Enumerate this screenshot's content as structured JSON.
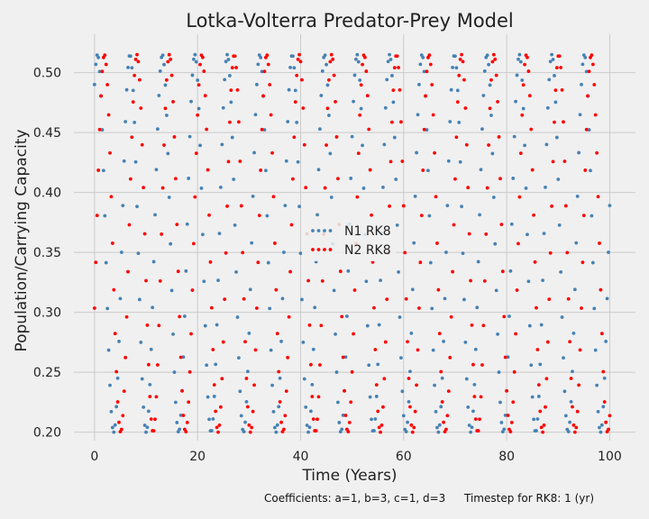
{
  "chart_data": {
    "type": "scatter",
    "title": "Lotka-Volterra Predator-Prey Model",
    "xlabel": "Time (Years)",
    "ylabel": "Population/Carrying Capacity",
    "xlim": [
      -4,
      105
    ],
    "ylim": [
      0.193,
      0.532
    ],
    "x_ticks": [
      0,
      20,
      40,
      60,
      80,
      100
    ],
    "y_ticks": [
      0.2,
      0.25,
      0.3,
      0.35,
      0.4,
      0.45,
      0.5
    ],
    "x_tick_labels": [
      "0",
      "20",
      "40",
      "60",
      "80",
      "100"
    ],
    "y_tick_labels": [
      "0.20",
      "0.25",
      "0.30",
      "0.35",
      "0.40",
      "0.45",
      "0.50"
    ],
    "grid": true,
    "legend_position": "center",
    "x_step": 0.25,
    "series": [
      {
        "name": "N1 RK8",
        "color": "#4682b4",
        "x_start": 0,
        "x_end": 100,
        "min": 0.2,
        "max": 0.515,
        "period": 6.3,
        "phase": 1.0
      },
      {
        "name": "N2 RK8",
        "color": "#ff0000",
        "x_start": 0,
        "x_end": 100,
        "min": 0.2,
        "max": 0.515,
        "period": 6.3,
        "phase": -0.35
      }
    ]
  },
  "footnote": {
    "coefficients": "Coefficients: a=1, b=3, c=1, d=3",
    "timestep": "Timestep for RK8: 1 (yr)"
  }
}
